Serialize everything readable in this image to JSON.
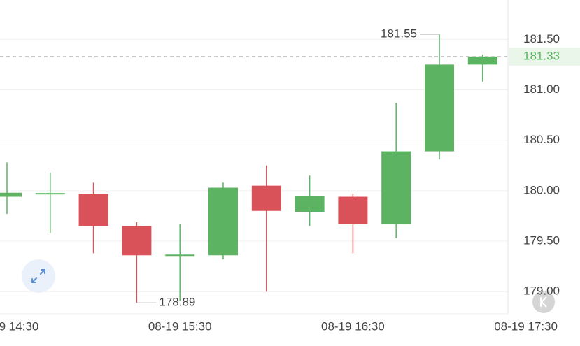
{
  "chart_data": {
    "type": "candlestick",
    "categories": [
      "08-19 14:30",
      null,
      null,
      null,
      "08-19 15:30",
      null,
      null,
      null,
      "08-19 16:30",
      null,
      null,
      null,
      "08-19 17:30"
    ],
    "open": [
      179.94,
      179.97,
      179.97,
      179.65,
      179.36,
      179.36,
      180.05,
      179.79,
      179.94,
      179.67,
      180.39,
      181.25,
      null
    ],
    "high": [
      180.28,
      180.18,
      180.08,
      179.69,
      179.67,
      180.08,
      180.25,
      180.15,
      179.97,
      180.87,
      181.55,
      181.35,
      null
    ],
    "low": [
      179.77,
      179.58,
      179.38,
      178.89,
      178.91,
      179.32,
      179.0,
      179.65,
      179.38,
      179.53,
      180.31,
      181.08,
      null
    ],
    "close": [
      179.98,
      179.97,
      179.65,
      179.36,
      179.36,
      180.03,
      179.8,
      179.95,
      179.67,
      180.39,
      181.25,
      181.33,
      null
    ],
    "up_color": "#5cb463",
    "down_color": "#d9525a",
    "ylim": [
      178.78,
      181.89
    ],
    "yticks": [
      {
        "value": 179,
        "label": "179.00"
      },
      {
        "value": 179.5,
        "label": "179.50"
      },
      {
        "value": 180,
        "label": "180.00"
      },
      {
        "value": 180.5,
        "label": "180.50"
      },
      {
        "value": 181,
        "label": "181.00"
      },
      {
        "value": 181.5,
        "label": "181.50"
      }
    ],
    "grid": true,
    "high_marker": 181.55,
    "low_marker": 178.89,
    "last_price": 181.33
  }
}
